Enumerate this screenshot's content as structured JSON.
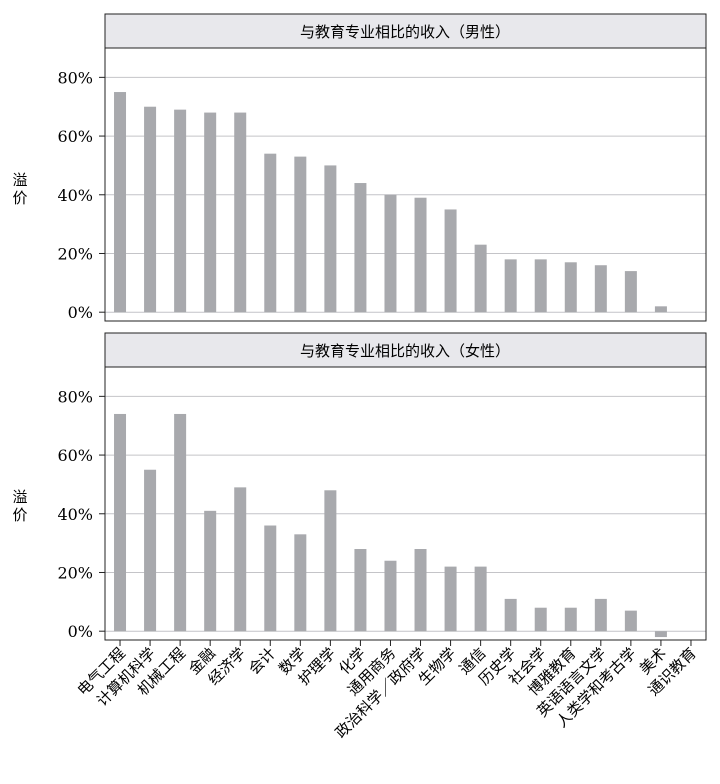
{
  "ylabel": "溢价",
  "chart_data": [
    {
      "type": "bar",
      "title": "与教育专业相比的收入（男性）",
      "ylabel": "溢价",
      "ylim": [
        -3,
        90
      ],
      "yticks": [
        0,
        20,
        40,
        60,
        80
      ],
      "ytick_labels": [
        "0%",
        "20%",
        "40%",
        "60%",
        "80%"
      ],
      "grid": true,
      "categories": [
        "电气工程",
        "计算机科学",
        "机械工程",
        "金融",
        "经济学",
        "会计",
        "数学",
        "护理学",
        "化学",
        "通用商务",
        "政治科学／政府学",
        "生物学",
        "通信",
        "历史学",
        "社会学",
        "博雅教育",
        "英语语言文学",
        "人类学和考古学",
        "美术",
        "通识教育"
      ],
      "values": [
        75,
        70,
        69,
        68,
        68,
        54,
        53,
        50,
        44,
        40,
        39,
        35,
        23,
        18,
        18,
        17,
        16,
        14,
        2,
        null
      ],
      "bar_color": "#a8a9ad"
    },
    {
      "type": "bar",
      "title": "与教育专业相比的收入（女性）",
      "ylabel": "溢价",
      "ylim": [
        -3,
        90
      ],
      "yticks": [
        0,
        20,
        40,
        60,
        80
      ],
      "ytick_labels": [
        "0%",
        "20%",
        "40%",
        "60%",
        "80%"
      ],
      "grid": true,
      "categories": [
        "电气工程",
        "计算机科学",
        "机械工程",
        "金融",
        "经济学",
        "会计",
        "数学",
        "护理学",
        "化学",
        "通用商务",
        "政治科学／政府学",
        "生物学",
        "通信",
        "历史学",
        "社会学",
        "博雅教育",
        "英语语言文学",
        "人类学和考古学",
        "美术",
        "通识教育"
      ],
      "values": [
        74,
        55,
        74,
        41,
        49,
        36,
        33,
        48,
        28,
        24,
        28,
        22,
        22,
        11,
        8,
        8,
        11,
        7,
        -2,
        null
      ],
      "bar_color": "#a8a9ad"
    }
  ]
}
